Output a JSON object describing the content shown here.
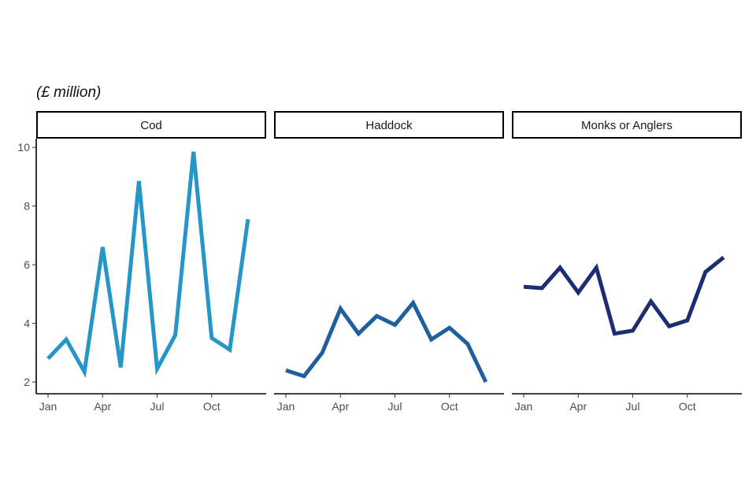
{
  "chart_data": {
    "type": "line",
    "unit_label": "(£ million)",
    "ylim": [
      1.6,
      10.3
    ],
    "yticks": [
      2,
      4,
      6,
      8,
      10
    ],
    "x": [
      1,
      2,
      3,
      4,
      5,
      6,
      7,
      8,
      9,
      10,
      11,
      12
    ],
    "xlim": [
      1,
      13
    ],
    "xticks": [
      {
        "x": 1,
        "label": "Jan"
      },
      {
        "x": 4,
        "label": "Apr"
      },
      {
        "x": 7,
        "label": "Jul"
      },
      {
        "x": 10,
        "label": "Oct"
      }
    ],
    "grid": false,
    "legend": "none",
    "panels": [
      {
        "name": "Cod",
        "color": "#2596c7",
        "values": [
          2.8,
          3.45,
          2.35,
          6.6,
          2.5,
          8.85,
          2.45,
          3.6,
          9.85,
          3.5,
          3.1,
          7.55
        ]
      },
      {
        "name": "Haddock",
        "color": "#1f5f9e",
        "values": [
          2.4,
          2.2,
          3.0,
          4.5,
          3.65,
          4.25,
          3.95,
          4.7,
          3.45,
          3.85,
          3.3,
          2.0
        ]
      },
      {
        "name": "Monks or Anglers",
        "color": "#1c2d74",
        "values": [
          5.25,
          5.2,
          5.9,
          5.05,
          5.9,
          3.65,
          3.75,
          4.75,
          3.9,
          4.1,
          5.75,
          6.25
        ]
      }
    ]
  }
}
